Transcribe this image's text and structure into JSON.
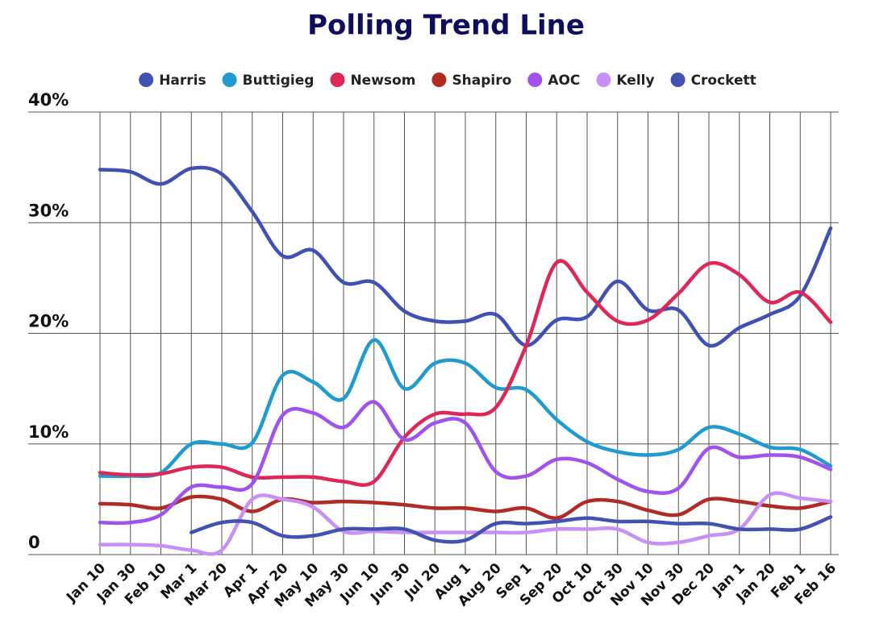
{
  "chart_data": {
    "type": "line",
    "title": "Polling Trend Line",
    "categories": [
      "Jan 10",
      "Jan 30",
      "Feb 10",
      "Mar 1",
      "Mar 20",
      "Apr 1",
      "Apr 20",
      "May 10",
      "May 30",
      "Jun 10",
      "Jun 30",
      "Jul 20",
      "Aug 1",
      "Aug 20",
      "Sep 1",
      "Sep 20",
      "Oct 10",
      "Oct 30",
      "Nov 10",
      "Nov 30",
      "Dec 20",
      "Jan 1",
      "Jan 20",
      "Feb 1",
      "Feb 16"
    ],
    "ylim": [
      0,
      40
    ],
    "yticks": [
      0,
      {
        "value": 10,
        "label": "10%"
      },
      {
        "value": 20,
        "label": "20%"
      },
      {
        "value": 30,
        "label": "30%"
      },
      {
        "value": 40,
        "label": "40%"
      }
    ],
    "grid": true,
    "legend": "top",
    "series": [
      {
        "name": "Harris",
        "color": "#3f51b5",
        "values": [
          34.8,
          34.6,
          33.5,
          34.9,
          34.4,
          31,
          27,
          27.5,
          24.6,
          24.6,
          22,
          21.1,
          21.1,
          21.7,
          18.9,
          21.2,
          21.5,
          24.7,
          22.1,
          22.1,
          18.9,
          20.5,
          21.7,
          23.4,
          29.5
        ]
      },
      {
        "name": "Buttigieg",
        "color": "#1f9bd0",
        "values": [
          7.1,
          7.1,
          7.4,
          10,
          10,
          10.1,
          16.2,
          15.6,
          14.1,
          19.4,
          15,
          17.3,
          17.3,
          15.1,
          14.9,
          12.2,
          10.2,
          9.3,
          9,
          9.5,
          11.5,
          10.9,
          9.7,
          9.5,
          8
        ]
      },
      {
        "name": "Newsom",
        "color": "#de2756",
        "values": [
          7.4,
          7.2,
          7.3,
          7.9,
          7.9,
          7,
          7,
          7,
          6.6,
          6.6,
          10.6,
          12.7,
          12.7,
          13.3,
          18.9,
          26.4,
          23.7,
          21.1,
          21.2,
          23.6,
          26.3,
          25.3,
          22.8,
          23.7,
          21
        ]
      },
      {
        "name": "Shapiro",
        "color": "#b02a26",
        "values": [
          4.6,
          4.5,
          4.2,
          5.2,
          5,
          3.9,
          5,
          4.7,
          4.8,
          4.7,
          4.5,
          4.2,
          4.2,
          3.9,
          4.2,
          3.3,
          4.8,
          4.8,
          4,
          3.6,
          5,
          4.8,
          4.4,
          4.2,
          4.8
        ]
      },
      {
        "name": "AOC",
        "color": "#a052ef",
        "values": [
          2.9,
          2.9,
          3.6,
          6.1,
          6.1,
          6.4,
          12.6,
          12.8,
          11.5,
          13.8,
          10.4,
          11.9,
          11.9,
          7.5,
          7.1,
          8.6,
          8.3,
          6.8,
          5.7,
          6,
          9.6,
          8.8,
          9,
          8.8,
          7.7
        ]
      },
      {
        "name": "Kelly",
        "color": "#c890f5",
        "values": [
          0.9,
          0.9,
          0.8,
          0.4,
          0.4,
          5,
          5,
          4.3,
          2.1,
          2.1,
          2,
          2,
          2,
          2,
          2,
          2.3,
          2.3,
          2.3,
          1.1,
          1.1,
          1.7,
          2.3,
          5.4,
          5.1,
          4.8
        ]
      },
      {
        "name": "Crockett",
        "color": "#4152b3",
        "values": [
          null,
          null,
          null,
          2,
          2.9,
          2.9,
          1.7,
          1.7,
          2.3,
          2.3,
          2.3,
          1.3,
          1.3,
          2.8,
          2.8,
          3,
          3.3,
          3,
          3,
          2.8,
          2.8,
          2.3,
          2.3,
          2.3,
          3.4
        ]
      }
    ]
  }
}
